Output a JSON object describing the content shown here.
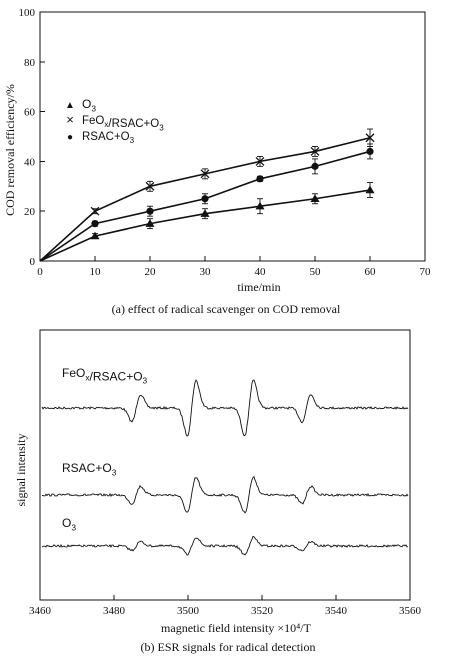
{
  "chart_data": [
    {
      "type": "line",
      "title": "(a) effect of radical scavenger on COD removal",
      "xlabel": "time/min",
      "ylabel": "COD removal efficiency/%",
      "xlim": [
        0,
        70
      ],
      "ylim": [
        0,
        100
      ],
      "x_ticks": [
        "0",
        "10",
        "20",
        "30",
        "40",
        "50",
        "60",
        "70"
      ],
      "y_ticks": [
        "0",
        "20",
        "40",
        "60",
        "80",
        "100"
      ],
      "grid": false,
      "legend": {
        "position": "center-left",
        "entries": [
          {
            "marker": "▲",
            "parts": [
              {
                "t": "O"
              },
              {
                "t": "3",
                "sub": true
              }
            ]
          },
          {
            "marker": "×",
            "parts": [
              {
                "t": "FeO"
              },
              {
                "t": "x",
                "sub": true
              },
              {
                "t": "/RSAC+O"
              },
              {
                "t": "3",
                "sub": true
              }
            ]
          },
          {
            "marker": "●",
            "parts": [
              {
                "t": "RSAC+O"
              },
              {
                "t": "3",
                "sub": true
              }
            ]
          }
        ]
      },
      "series": [
        {
          "marker": "triangle",
          "x": [
            0,
            10,
            20,
            30,
            40,
            50,
            60
          ],
          "y": [
            0,
            10,
            15,
            19,
            22,
            25,
            28.5
          ],
          "err": [
            0,
            1,
            2,
            2,
            3,
            2,
            3
          ]
        },
        {
          "marker": "cross",
          "x": [
            0,
            10,
            20,
            30,
            40,
            50,
            60
          ],
          "y": [
            0,
            20,
            30,
            35,
            40,
            44,
            49.5
          ],
          "err": [
            0,
            1,
            2,
            2,
            2,
            2,
            3.5
          ]
        },
        {
          "marker": "circle",
          "x": [
            0,
            10,
            20,
            30,
            40,
            50,
            60
          ],
          "y": [
            0,
            15,
            20,
            25,
            33,
            38,
            44
          ],
          "err": [
            0,
            1,
            2,
            2,
            1,
            3,
            3
          ]
        }
      ]
    },
    {
      "type": "line",
      "title": "(b) ESR signals for radical detection",
      "xlabel": "magnetic field intensity ×10⁴/T",
      "ylabel": "signal intensity",
      "xlim": [
        3460,
        3560
      ],
      "x_ticks": [
        "3460",
        "3480",
        "3500",
        "3520",
        "3540",
        "3560"
      ],
      "grid": false,
      "peaks": [
        3486,
        3501,
        3516.5,
        3532
      ],
      "peak_ratio": [
        1,
        2,
        2,
        1
      ],
      "series": [
        {
          "label_parts": [
            {
              "t": "FeO"
            },
            {
              "t": "x",
              "sub": true
            },
            {
              "t": "/RSAC+O"
            },
            {
              "t": "3",
              "sub": true
            }
          ],
          "amplitude": 25
        },
        {
          "label_parts": [
            {
              "t": "RSAC+O"
            },
            {
              "t": "3",
              "sub": true
            }
          ],
          "amplitude": 16
        },
        {
          "label_parts": [
            {
              "t": "O"
            },
            {
              "t": "3",
              "sub": true
            }
          ],
          "amplitude": 8
        }
      ]
    }
  ]
}
